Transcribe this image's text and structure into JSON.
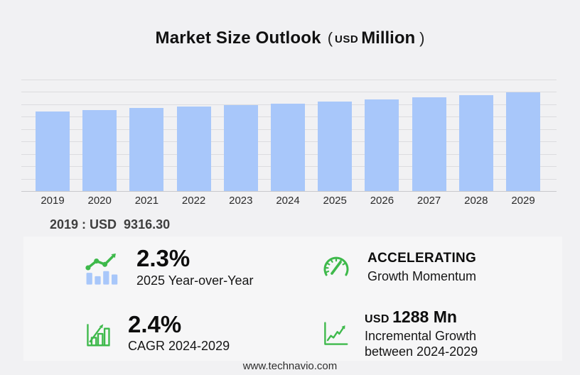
{
  "title": {
    "main": "Market Size Outlook",
    "open_paren": "(",
    "currency": "USD",
    "unit": "Million",
    "close_paren": ")"
  },
  "chart_data": {
    "type": "bar",
    "title": "Market Size Outlook (USD Million)",
    "categories": [
      "2019",
      "2020",
      "2021",
      "2022",
      "2023",
      "2024",
      "2025",
      "2026",
      "2027",
      "2028",
      "2029"
    ],
    "values": [
      9316.3,
      9490,
      9670,
      9850,
      10040,
      10234,
      10469,
      10720,
      10977,
      11241,
      11522
    ],
    "ylabel": "USD Million",
    "xlabel": "",
    "ylim": [
      0,
      13000
    ],
    "grid": true,
    "legend": false,
    "bar_color": "#a8c7fa",
    "annotation": "2019 : USD  9316.30"
  },
  "highlight_value": "2019 : USD  9316.30",
  "stats": {
    "yoy": {
      "value": "2.3%",
      "label": "2025 Year-over-Year",
      "icon": "bar-chart-trend-icon"
    },
    "momentum": {
      "value": "ACCELERATING",
      "label": "Growth Momentum",
      "icon": "speedometer-icon"
    },
    "cagr": {
      "value": "2.4%",
      "label": "CAGR 2024-2029",
      "icon": "growth-bars-icon"
    },
    "incremental": {
      "currency": "USD",
      "value": "1288 Mn",
      "label_line1": "Incremental Growth",
      "label_line2": "between 2024-2029",
      "icon": "line-chart-axes-icon"
    }
  },
  "footer": {
    "website": "www.technavio.com"
  },
  "colors": {
    "background": "#f1f1f3",
    "panel": "#f6f6f7",
    "bar": "#a8c7fa",
    "accent_green": "#3eb94b",
    "gridline": "#dcdcdf",
    "axis_line": "#c9c9cc",
    "title_text": "#111111",
    "muted_text": "#3f3f3f"
  }
}
